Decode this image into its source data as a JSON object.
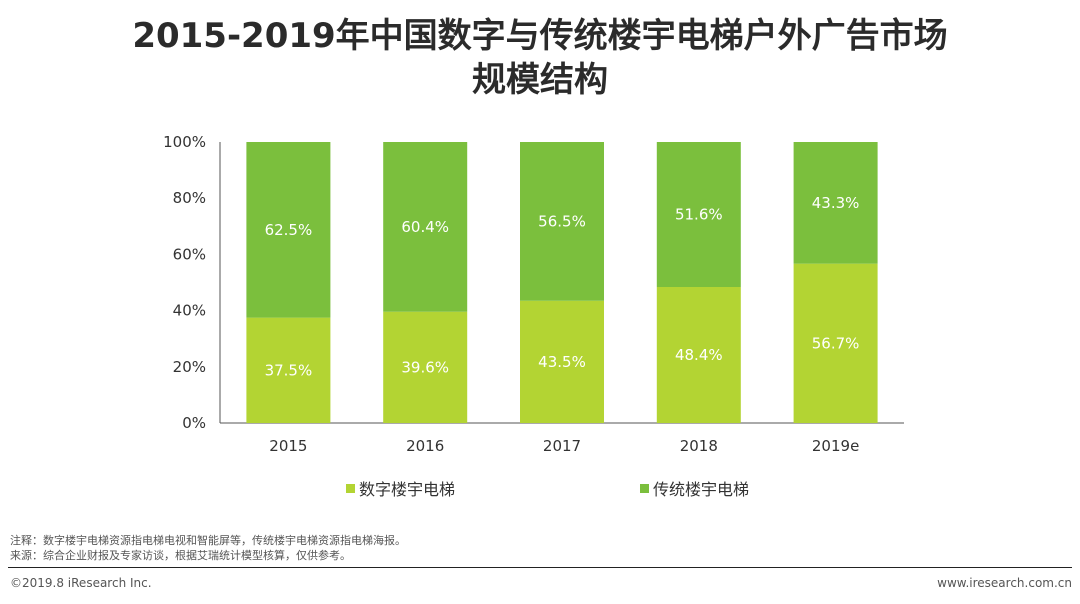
{
  "title": {
    "line1": "2015-2019年中国数字与传统楼宇电梯户外广告市场",
    "line2": "规模结构"
  },
  "colors": {
    "digital": "#b3d433",
    "traditional": "#7bbf3d",
    "axis": "#555555"
  },
  "chart_data": {
    "type": "bar",
    "stacked": true,
    "title": "2015-2019年中国数字与传统楼宇电梯户外广告市场规模结构",
    "categories": [
      "2015",
      "2016",
      "2017",
      "2018",
      "2019e"
    ],
    "series": [
      {
        "name": "数字楼宇电梯",
        "values": [
          37.5,
          39.6,
          43.5,
          48.4,
          56.7
        ],
        "labels": [
          "37.5%",
          "39.6%",
          "43.5%",
          "48.4%",
          "56.7%"
        ]
      },
      {
        "name": "传统楼宇电梯",
        "values": [
          62.5,
          60.4,
          56.5,
          51.6,
          43.3
        ],
        "labels": [
          "62.5%",
          "60.4%",
          "56.5%",
          "51.6%",
          "43.3%"
        ]
      }
    ],
    "yticks": [
      "0%",
      "20%",
      "40%",
      "60%",
      "80%",
      "100%"
    ],
    "ylim": [
      0,
      100
    ],
    "xlabel": "",
    "ylabel": "",
    "legend_position": "bottom"
  },
  "legend": {
    "digital": "数字楼宇电梯",
    "traditional": "传统楼宇电梯"
  },
  "notes": {
    "note": "注释：数字楼宇电梯资源指电梯电视和智能屏等，传统楼宇电梯资源指电梯海报。",
    "source": "来源：综合企业财报及专家访谈，根据艾瑞统计模型核算，仅供参考。"
  },
  "footer": {
    "copyright": "©2019.8 iResearch Inc.",
    "website": "www.iresearch.com.cn"
  }
}
